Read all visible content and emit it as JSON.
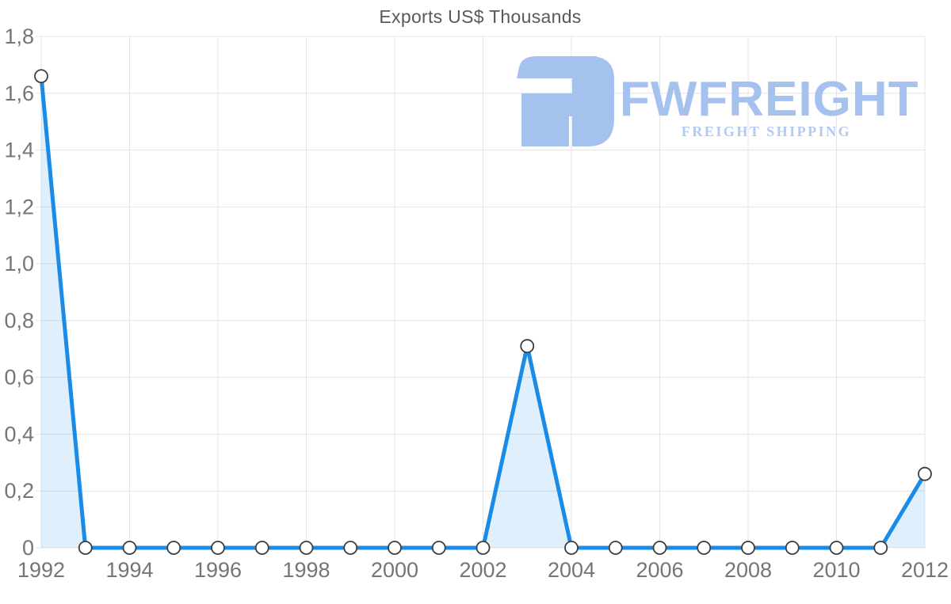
{
  "logo": {
    "brand": "FWFREIGHT",
    "tagline": "FREIGHT SHIPPING",
    "brand_color": "#a5c1ee",
    "tagline_color": "#b3c9f2",
    "icon": "fwfreight-mark"
  },
  "chart_data": {
    "type": "area",
    "title": "Exports US$ Thousands",
    "xlabel": "",
    "ylabel": "",
    "x": [
      1992,
      1993,
      1994,
      1995,
      1996,
      1997,
      1998,
      1999,
      2000,
      2001,
      2002,
      2003,
      2004,
      2005,
      2006,
      2007,
      2008,
      2009,
      2010,
      2011,
      2012
    ],
    "values": [
      1.66,
      0,
      0,
      0,
      0,
      0,
      0,
      0,
      0,
      0,
      0,
      0.71,
      0,
      0,
      0,
      0,
      0,
      0,
      0,
      0,
      0.26
    ],
    "xlim": [
      1992,
      2012
    ],
    "ylim": [
      0,
      1.8
    ],
    "x_ticks": {
      "values": [
        1992,
        1994,
        1996,
        1998,
        2000,
        2002,
        2004,
        2006,
        2008,
        2010,
        2012
      ],
      "labels": [
        "1992",
        "1994",
        "1996",
        "1998",
        "2000",
        "2002",
        "2004",
        "2006",
        "2008",
        "2010",
        "2012"
      ]
    },
    "y_ticks": {
      "values": [
        0,
        0.2,
        0.4,
        0.6,
        0.8,
        1.0,
        1.2,
        1.4,
        1.6,
        1.8
      ],
      "labels": [
        "0",
        "0,2",
        "0,4",
        "0,6",
        "0,8",
        "1,0",
        "1,2",
        "1,4",
        "1,6",
        "1,8"
      ]
    },
    "grid": true,
    "legend": false,
    "markers": "circle-every-point",
    "colors": {
      "line": "#1a8ce8",
      "fill": "rgba(27,140,232,0.14)",
      "marker_fill": "#ffffff",
      "marker_stroke": "#3d3d3d",
      "grid": "#e4e4e4",
      "tick_text": "#757575",
      "title_text": "#595959"
    }
  }
}
